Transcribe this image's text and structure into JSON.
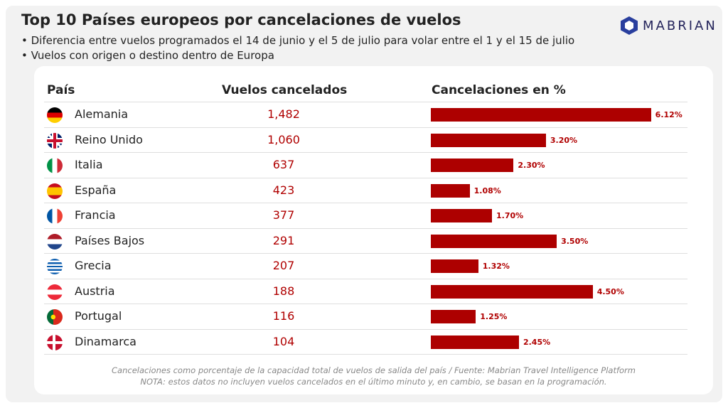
{
  "title": "Top 10 Países europeos por cancelaciones de vuelos",
  "bullets": [
    "•  Diferencia entre vuelos programados el 14 de junio y el 5 de julio para volar entre el 1 y el 15 de julio",
    "•  Vuelos con origen o destino dentro de Europa"
  ],
  "logo": "MABRIAN",
  "columns": {
    "country": "País",
    "flights": "Vuelos cancelados",
    "pct": "Cancelaciones en %"
  },
  "bar_color": "#ad0000",
  "chart_data": {
    "type": "bar",
    "orientation": "horizontal",
    "categories": [
      "Alemania",
      "Reino Unido",
      "Italia",
      "España",
      "Francia",
      "Países Bajos",
      "Grecia",
      "Austria",
      "Portugal",
      "Dinamarca"
    ],
    "flags": [
      "de",
      "gb",
      "it",
      "es",
      "fr",
      "nl",
      "gr",
      "at",
      "pt",
      "dk"
    ],
    "flights_cancelled": [
      "1,482",
      "1,060",
      "637",
      "423",
      "377",
      "291",
      "207",
      "188",
      "116",
      "104"
    ],
    "values": [
      6.12,
      3.2,
      2.3,
      1.08,
      1.7,
      3.5,
      1.32,
      4.5,
      1.25,
      2.45
    ],
    "labels": [
      "6.12%",
      "3.20%",
      "2.30%",
      "1.08%",
      "1.70%",
      "3.50%",
      "1.32%",
      "4.50%",
      "1.25%",
      "2.45%"
    ]
  },
  "footer": [
    "Cancelaciones como porcentaje de la capacidad total de vuelos de salida del país / Fuente: Mabrian Travel Intelligence Platform",
    "NOTA: estos datos no incluyen vuelos cancelados en el último minuto y, en cambio, se basan en la programación."
  ]
}
